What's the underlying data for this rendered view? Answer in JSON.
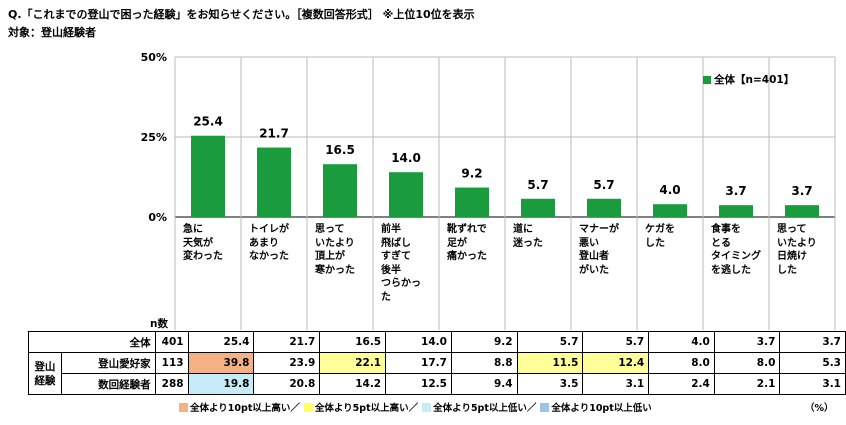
{
  "question": "Q.「これまでの登山で困った経験」をお知らせください。［複数回答形式］ ※上位10位を表示",
  "target": "対象：登山経験者",
  "chart_data": {
    "type": "bar",
    "ylim": [
      0,
      50
    ],
    "yticks": [
      "0%",
      "25%",
      "50%"
    ],
    "ytick_values": [
      0,
      25,
      50
    ],
    "bar_color": "#1a9c3e",
    "legend": "全体【n=401】",
    "legend_position": "top-right",
    "categories": [
      [
        "急に",
        "天気が",
        "変わった"
      ],
      [
        "トイレが",
        "あまり",
        "なかった"
      ],
      [
        "思って",
        "いたより",
        "頂上が",
        "寒かった"
      ],
      [
        "前半",
        "飛ばし",
        "すぎて",
        "後半",
        "つらかっ",
        "た"
      ],
      [
        "靴ずれで",
        "足が",
        "痛かった"
      ],
      [
        "道に",
        "迷った"
      ],
      [
        "マナーが",
        "悪い",
        "登山者",
        "がいた"
      ],
      [
        "ケガを",
        "した"
      ],
      [
        "食事を",
        "とる",
        "タイミング",
        "を逃した"
      ],
      [
        "思って",
        "いたより",
        "日焼け",
        "した"
      ]
    ],
    "values": [
      25.4,
      21.7,
      16.5,
      14.0,
      9.2,
      5.7,
      5.7,
      4.0,
      3.7,
      3.7
    ],
    "value_labels": [
      "25.4",
      "21.7",
      "16.5",
      "14.0",
      "9.2",
      "5.7",
      "5.7",
      "4.0",
      "3.7",
      "3.7"
    ]
  },
  "table": {
    "n_header": "n数",
    "group_label": "登山経験",
    "rows": [
      {
        "label": "全体",
        "n": "401",
        "values": [
          "25.4",
          "21.7",
          "16.5",
          "14.0",
          "9.2",
          "5.7",
          "5.7",
          "4.0",
          "3.7",
          "3.7"
        ],
        "hl": [
          "",
          "",
          "",
          "",
          "",
          "",
          "",
          "",
          "",
          ""
        ]
      },
      {
        "label": "登山愛好家",
        "n": "113",
        "values": [
          "39.8",
          "23.9",
          "22.1",
          "17.7",
          "8.8",
          "11.5",
          "12.4",
          "8.0",
          "8.0",
          "5.3"
        ],
        "hl": [
          "orange",
          "",
          "yellow",
          "",
          "",
          "yellow",
          "yellow",
          "",
          "",
          ""
        ]
      },
      {
        "label": "数回経験者",
        "n": "288",
        "values": [
          "19.8",
          "20.8",
          "14.2",
          "12.5",
          "9.4",
          "3.5",
          "3.1",
          "2.4",
          "2.1",
          "3.1"
        ],
        "hl": [
          "blue",
          "",
          "",
          "",
          "",
          "",
          "",
          "",
          "",
          ""
        ]
      }
    ]
  },
  "footnote": {
    "items": [
      {
        "color": "#f4b183",
        "text": "全体より10pt以上高い／"
      },
      {
        "color": "#ffff66",
        "text": "全体より5pt以上高い／"
      },
      {
        "color": "#c5ecf8",
        "text": "全体より5pt以上低い／"
      },
      {
        "color": "#9dc3e6",
        "text": "全体より10pt以上低い"
      }
    ],
    "unit": "（%）"
  }
}
